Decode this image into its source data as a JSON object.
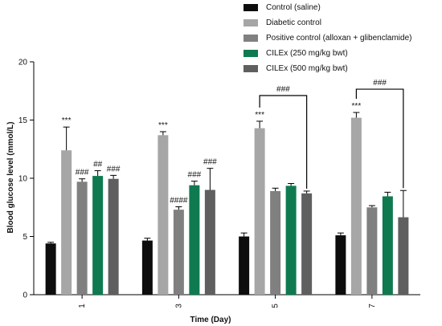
{
  "chart_data": {
    "type": "bar",
    "xlabel": "Time (Day)",
    "ylabel": "Blood glucose level (mmol/L)",
    "ylim": [
      0,
      20
    ],
    "yticks": [
      "0",
      "5",
      "10",
      "15",
      "20"
    ],
    "categories": [
      "1",
      "3",
      "5",
      "7"
    ],
    "legend_position": "top-right",
    "series": [
      {
        "name": "Control (saline)",
        "color": "#0d0d0d",
        "values": [
          4.4,
          4.65,
          5.0,
          5.1
        ],
        "errors": [
          0.1,
          0.2,
          0.3,
          0.2
        ],
        "annotations": [
          "",
          "",
          "",
          ""
        ]
      },
      {
        "name": "Diabetic control",
        "color": "#a6a6a6",
        "values": [
          12.4,
          13.7,
          14.3,
          15.2
        ],
        "errors": [
          2.0,
          0.3,
          0.6,
          0.45
        ],
        "annotations": [
          "***",
          "***",
          "***",
          "***"
        ]
      },
      {
        "name": "Positive control (alloxan + glibenclamide)",
        "color": "#808080",
        "values": [
          9.7,
          7.3,
          8.9,
          7.5
        ],
        "errors": [
          0.25,
          0.25,
          0.25,
          0.15
        ],
        "annotations": [
          "###",
          "####",
          "",
          ""
        ]
      },
      {
        "name": "CILEx (250 mg/kg bwt)",
        "color": "#0f7a50",
        "values": [
          10.2,
          9.4,
          9.35,
          8.45
        ],
        "errors": [
          0.45,
          0.35,
          0.2,
          0.35
        ],
        "annotations": [
          "##",
          "###",
          "",
          ""
        ]
      },
      {
        "name": "CILEx (500 mg/kg bwt)",
        "color": "#5f5f5f",
        "values": [
          9.95,
          9.0,
          8.7,
          6.65
        ],
        "errors": [
          0.3,
          1.85,
          0.2,
          2.3
        ],
        "annotations": [
          "###",
          "###",
          "",
          ""
        ]
      }
    ],
    "brackets": [
      {
        "category_index": 2,
        "from_series": 1,
        "to_series": 4,
        "label": "###"
      },
      {
        "category_index": 3,
        "from_series": 1,
        "to_series": 4,
        "label": "###"
      }
    ]
  }
}
